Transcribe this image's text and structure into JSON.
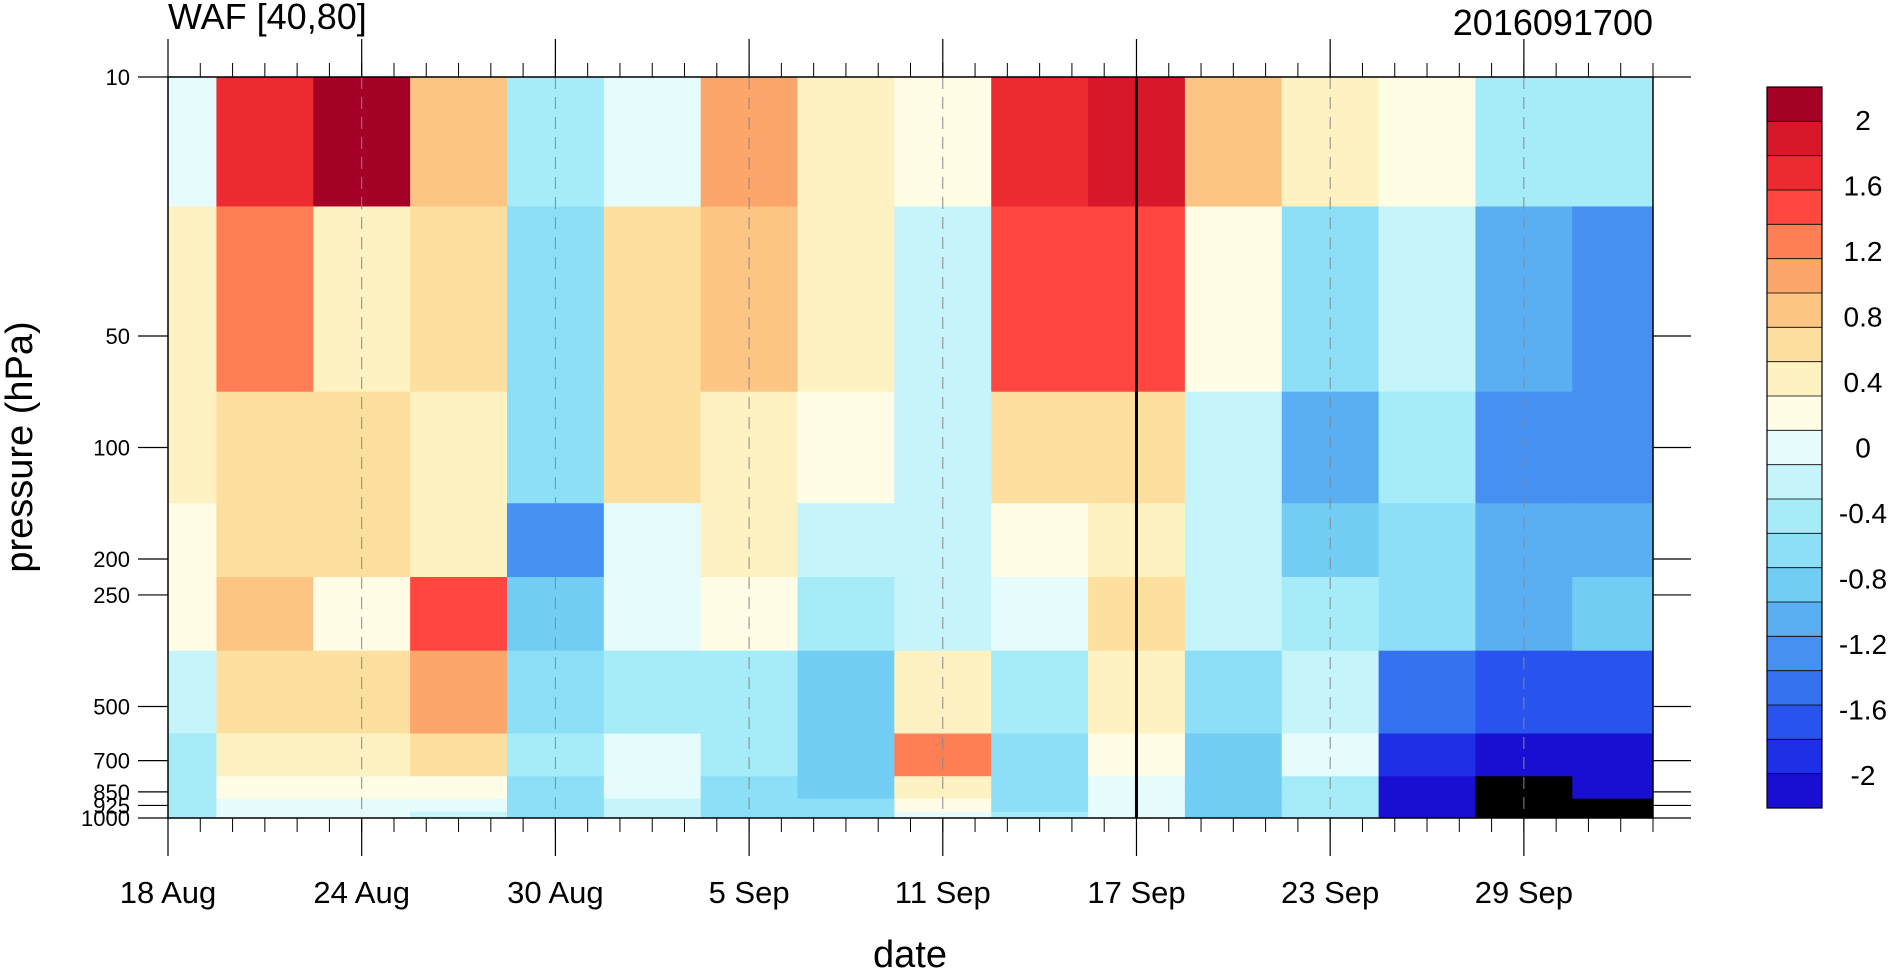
{
  "chart_data": {
    "type": "heatmap",
    "title": "WAF [40,80]",
    "subtitle": "2016091700",
    "xlabel": "date",
    "ylabel": "pressure (hPa)",
    "y_scale": "log",
    "y_reversed": true,
    "ylim": [
      1000,
      10
    ],
    "xlim": [
      "2016-08-18",
      "2016-10-03"
    ],
    "current_date": "2016-09-17",
    "x_ticks": [
      "18 Aug",
      "24 Aug",
      "30 Aug",
      "5 Sep",
      "11 Sep",
      "17 Sep",
      "23 Sep",
      "29 Sep"
    ],
    "x_tick_dates": [
      "2016-08-18",
      "2016-08-24",
      "2016-08-30",
      "2016-09-05",
      "2016-09-11",
      "2016-09-17",
      "2016-09-23",
      "2016-09-29"
    ],
    "y_ticks": [
      "10",
      "50",
      "100",
      "200",
      "250",
      "500",
      "700",
      "850",
      "925",
      "1000"
    ],
    "y_levels": [
      10,
      50,
      100,
      200,
      250,
      500,
      700,
      850,
      925,
      1000
    ],
    "colorbar": {
      "labels": [
        "2",
        "1.6",
        "1.2",
        "0.8",
        "0.4",
        "0",
        "-0.4",
        "-0.8",
        "-1.2",
        "-1.6",
        "-2"
      ],
      "label_values": [
        2,
        1.6,
        1.2,
        0.8,
        0.4,
        0,
        -0.4,
        -0.8,
        -1.2,
        -1.6,
        -2
      ],
      "boundaries": [
        2.2,
        2.0,
        1.8,
        1.6,
        1.4,
        1.2,
        1.0,
        0.8,
        0.6,
        0.4,
        0.2,
        0.0,
        -0.2,
        -0.4,
        -0.6,
        -0.8,
        -1.0,
        -1.2,
        -1.4,
        -1.6,
        -1.8,
        -2.0,
        -2.2
      ],
      "colors": [
        "#a50026",
        "#d6182a",
        "#ee2a31",
        "#ff4740",
        "#fe7f55",
        "#fda66b",
        "#fdc584",
        "#fde0a0",
        "#fef2c2",
        "#fffde6",
        "#e5fbfc",
        "#c6f4fb",
        "#a6ebf8",
        "#8ddff7",
        "#72cdf5",
        "#5aaef2",
        "#4590f0",
        "#3572ef",
        "#2853ee",
        "#1d30e6",
        "#180fd2"
      ]
    },
    "x": [
      "2016-08-18",
      "2016-08-21",
      "2016-08-24",
      "2016-08-27",
      "2016-08-30",
      "2016-09-02",
      "2016-09-05",
      "2016-09-08",
      "2016-09-11",
      "2016-09-14",
      "2016-09-17",
      "2016-09-20",
      "2016-09-23",
      "2016-09-26",
      "2016-09-29",
      "2016-10-02"
    ],
    "z": [
      [
        0.1,
        1.6,
        2.1,
        0.9,
        -0.3,
        0.0,
        1.1,
        0.5,
        0.2,
        1.7,
        1.8,
        0.8,
        0.5,
        0.2,
        -0.3,
        -0.4
      ],
      [
        0.5,
        1.2,
        0.5,
        0.6,
        -0.5,
        0.7,
        0.9,
        0.5,
        -0.2,
        1.5,
        1.5,
        0.2,
        -0.5,
        -0.2,
        -1.0,
        -1.2
      ],
      [
        0.5,
        0.6,
        0.6,
        0.4,
        -0.6,
        0.7,
        0.5,
        0.3,
        -0.1,
        0.6,
        0.7,
        -0.1,
        -0.9,
        -0.4,
        -1.2,
        -1.1
      ],
      [
        0.3,
        0.7,
        0.7,
        0.5,
        -1.1,
        0.1,
        0.4,
        -0.2,
        -0.2,
        0.3,
        0.5,
        -0.1,
        -0.7,
        -0.5,
        -0.9,
        -0.9
      ],
      [
        0.2,
        0.8,
        0.2,
        1.4,
        -0.8,
        0.0,
        0.3,
        -0.3,
        -0.1,
        0.1,
        0.6,
        -0.2,
        -0.4,
        -0.6,
        -0.9,
        -0.8
      ],
      [
        -0.1,
        0.6,
        0.6,
        1.0,
        -0.5,
        -0.4,
        -0.3,
        -0.8,
        0.5,
        -0.3,
        0.5,
        -0.6,
        -0.2,
        -1.4,
        -1.5,
        -1.6
      ],
      [
        -0.3,
        0.4,
        0.4,
        0.6,
        -0.4,
        0.0,
        -0.4,
        -0.7,
        1.3,
        -0.5,
        0.3,
        -0.8,
        0.0,
        -1.7,
        -1.9,
        -1.9
      ],
      [
        -0.4,
        0.2,
        0.3,
        0.2,
        -0.5,
        0.0,
        -0.6,
        -0.7,
        0.5,
        -0.6,
        0.1,
        -0.8,
        -0.3,
        -1.9,
        -2.1,
        -2.0
      ],
      [
        -0.4,
        0.1,
        0.1,
        0.0,
        -0.5,
        -0.1,
        -0.6,
        -0.6,
        0.2,
        -0.5,
        0.0,
        -0.8,
        -0.4,
        -2.0,
        -2.1,
        -2.1
      ],
      [
        -0.4,
        0.0,
        0.0,
        -0.1,
        -0.5,
        -0.1,
        -0.5,
        -0.5,
        0.1,
        -0.4,
        0.0,
        -0.7,
        -0.4,
        -2.0,
        -2.1,
        -2.1
      ]
    ]
  }
}
